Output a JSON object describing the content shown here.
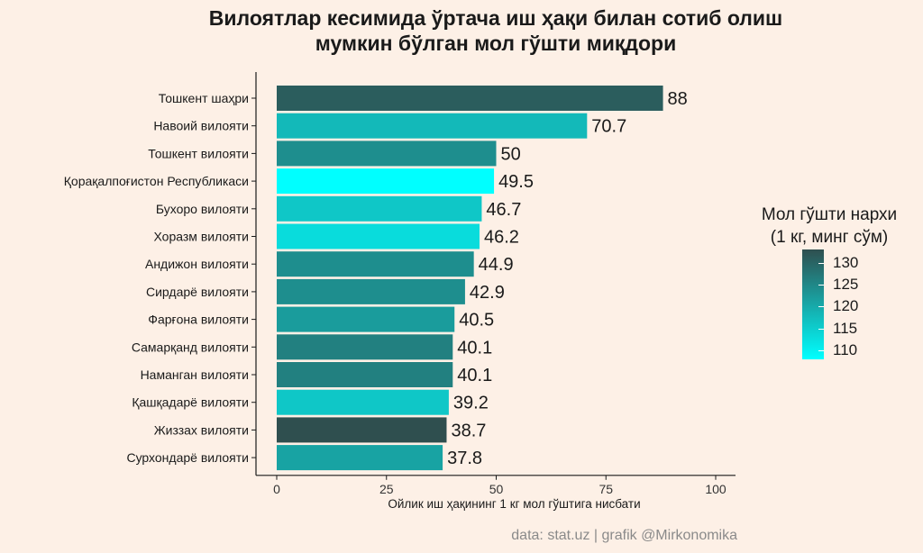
{
  "title_line1": "Вилоятлар кесимида  ўртача иш ҳақи билан сотиб олиш",
  "title_line2": "мумкин бўлган мол гўшти миқдори",
  "caption": "data: stat.uz | grafik @Mirkonomika",
  "legend": {
    "title_line1": "Мол гўшти нархи",
    "title_line2": "(1 кг, минг сўм)",
    "ticks": [
      130,
      125,
      120,
      115,
      110
    ],
    "color_low": "#00ffff",
    "color_high": "#2f4f4f",
    "range": [
      108,
      133
    ]
  },
  "chart_data": {
    "type": "bar",
    "orientation": "horizontal",
    "xlabel": "Ойлик иш ҳақининг 1 кг мол гўштига нисбати",
    "xlim": [
      0,
      105
    ],
    "xticks": [
      0,
      25,
      50,
      75,
      100
    ],
    "grid": false,
    "categories": [
      "Тошкент шаҳри",
      "Навоий вилояти",
      "Тошкент вилояти",
      "Қорақалпоғистон Республикаси",
      "Бухоро вилояти",
      "Хоразм вилояти",
      "Андижон вилояти",
      "Сирдарё вилояти",
      "Фарғона вилояти",
      "Самарқанд вилояти",
      "Наманган вилояти",
      "Қашқадарё вилояти",
      "Жиззах вилояти",
      "Сурхондарё вилояти"
    ],
    "values": [
      88,
      70.7,
      50,
      49.5,
      46.7,
      46.2,
      44.9,
      42.9,
      40.5,
      40.1,
      40.1,
      39.2,
      38.7,
      37.8
    ],
    "value_labels": [
      "88",
      "70.7",
      "50",
      "49.5",
      "46.7",
      "46.2",
      "44.9",
      "42.9",
      "40.5",
      "40.1",
      "40.1",
      "39.2",
      "38.7",
      "37.8"
    ],
    "beef_price": [
      131,
      118,
      124,
      108,
      116,
      113,
      124,
      124,
      122,
      126,
      126,
      116,
      133,
      121
    ]
  }
}
